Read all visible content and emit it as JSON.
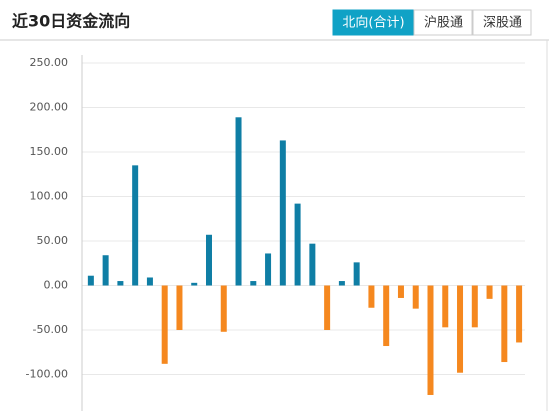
{
  "tabs": [
    "北向(合计)",
    "沪股通",
    "深股通"
  ],
  "active_tab": 0,
  "chart_data": {
    "type": "bar",
    "title": "近30日资金流向",
    "values": [
      11,
      34,
      5,
      135,
      9,
      -88,
      -50,
      3,
      57,
      -52,
      189,
      5,
      36,
      163,
      92,
      47,
      -50,
      5,
      26,
      -25,
      -68,
      -14,
      -26,
      -123,
      -47,
      -98,
      -47,
      -15,
      -86,
      -64
    ],
    "color": "#0f7ea5",
    "negative_color": "#f5881f",
    "ylim": [
      -141,
      250
    ],
    "yticks": [
      {
        "value": 250,
        "label": "250.00"
      },
      {
        "value": 200,
        "label": "200.00"
      },
      {
        "value": 150,
        "label": "150.00"
      },
      {
        "value": 100,
        "label": "100.00"
      },
      {
        "value": 50,
        "label": "50.00"
      },
      {
        "value": 0,
        "label": "0.00"
      },
      {
        "value": -50,
        "label": "-50.00"
      },
      {
        "value": -100,
        "label": "-100.00"
      }
    ],
    "grid": true
  }
}
